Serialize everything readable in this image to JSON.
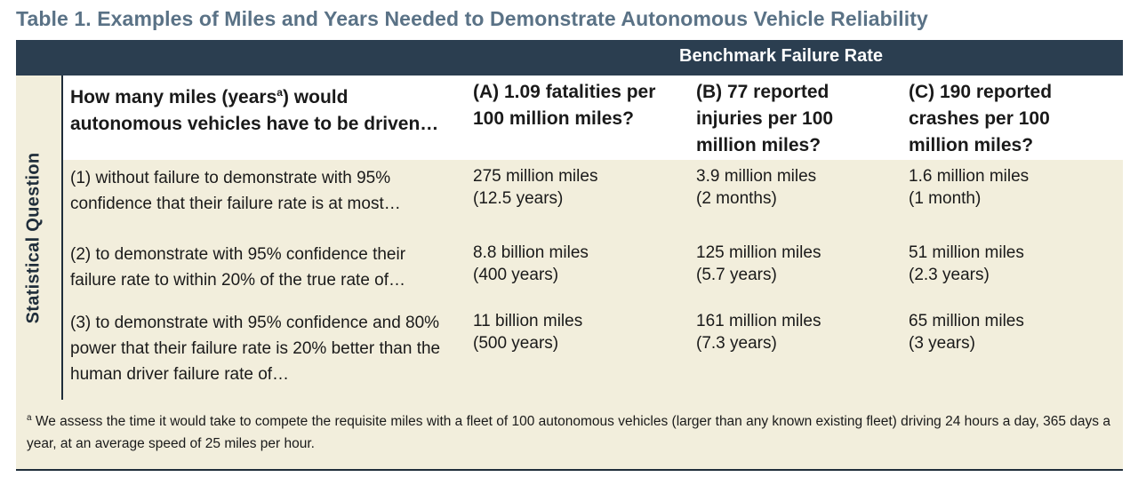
{
  "title": "Table 1. Examples of Miles and Years Needed to Demonstrate Autonomous Vehicle Reliability",
  "header_bar": "Benchmark Failure Rate",
  "side_label": "Statistical Question",
  "columns": {
    "question_header_1": "How many miles (years",
    "question_header_sup": "a",
    "question_header_2": ") would autonomous vehicles have to be driven…",
    "a": "(A) 1.09 fatalities per 100 million miles?",
    "b": "(B) 77 reported injuries per 100 million miles?",
    "c": "(C) 190 reported crashes per 100 million miles?"
  },
  "rows": [
    {
      "question": "(1) without failure to demonstrate with 95% confidence that their failure rate is at most…",
      "a_miles": "275 million miles",
      "a_years": "(12.5 years)",
      "b_miles": "3.9 million miles",
      "b_years": "(2 months)",
      "c_miles": "1.6 million miles",
      "c_years": "(1 month)"
    },
    {
      "question": "(2) to demonstrate with 95% confidence their failure rate to within 20% of the true rate of…",
      "a_miles": "8.8 billion miles",
      "a_years": "(400 years)",
      "b_miles": "125 million miles",
      "b_years": "(5.7 years)",
      "c_miles": "51 million miles",
      "c_years": "(2.3 years)"
    },
    {
      "question": "(3) to demonstrate with 95% confidence and 80% power that their failure rate is 20% better than the human driver failure rate of…",
      "a_miles": "11 billion miles",
      "a_years": "(500 years)",
      "b_miles": "161 million miles",
      "b_years": "(7.3 years)",
      "c_miles": "65 million miles",
      "c_years": "(3 years)"
    }
  ],
  "footnote": {
    "marker": "a",
    "text": "We assess the time it would take to compete the requisite miles with a fleet of 100 autonomous vehicles (larger than any known existing fleet) driving 24 hours a day, 365 days a year, at an average speed of 25 miles per hour."
  }
}
